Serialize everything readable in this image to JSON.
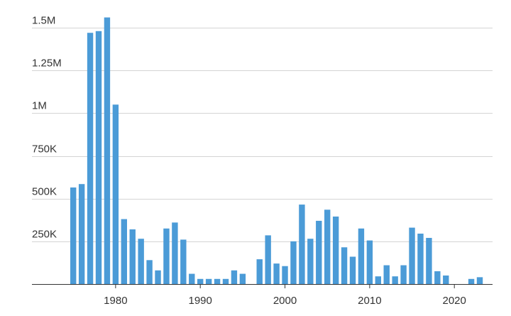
{
  "chart_data": {
    "type": "bar",
    "title": "",
    "xlabel": "",
    "ylabel": "",
    "x": [
      1975,
      1976,
      1977,
      1978,
      1979,
      1980,
      1981,
      1982,
      1983,
      1984,
      1985,
      1986,
      1987,
      1988,
      1989,
      1990,
      1991,
      1992,
      1993,
      1994,
      1995,
      1996,
      1997,
      1998,
      1999,
      2000,
      2001,
      2002,
      2003,
      2004,
      2005,
      2006,
      2007,
      2008,
      2009,
      2010,
      2011,
      2012,
      2013,
      2014,
      2015,
      2016,
      2017,
      2018,
      2019,
      2020,
      2021,
      2022,
      2023
    ],
    "values": [
      565000,
      585000,
      1470000,
      1480000,
      1560000,
      1050000,
      380000,
      320000,
      265000,
      140000,
      80000,
      325000,
      360000,
      260000,
      60000,
      30000,
      30000,
      30000,
      30000,
      80000,
      60000,
      null,
      145000,
      285000,
      120000,
      105000,
      250000,
      465000,
      265000,
      370000,
      435000,
      395000,
      215000,
      160000,
      325000,
      255000,
      45000,
      110000,
      45000,
      110000,
      330000,
      295000,
      270000,
      75000,
      50000,
      null,
      null,
      30000,
      40000
    ],
    "ylim": [
      0,
      1560000
    ],
    "y_ticks": [
      {
        "value": 250000,
        "label": "250K"
      },
      {
        "value": 500000,
        "label": "500K"
      },
      {
        "value": 750000,
        "label": "750K"
      },
      {
        "value": 1000000,
        "label": "1M"
      },
      {
        "value": 1250000,
        "label": "1.25M"
      },
      {
        "value": 1500000,
        "label": "1.5M"
      }
    ],
    "x_ticks": [
      {
        "value": 1980,
        "label": "1980"
      },
      {
        "value": 1990,
        "label": "1990"
      },
      {
        "value": 2000,
        "label": "2000"
      },
      {
        "value": 2010,
        "label": "2010"
      },
      {
        "value": 2020,
        "label": "2020"
      }
    ],
    "grid": true,
    "colors": {
      "bar": "#4b9bd7",
      "grid": "#d4d4d4",
      "axis": "#333333",
      "text": "#333333"
    }
  }
}
